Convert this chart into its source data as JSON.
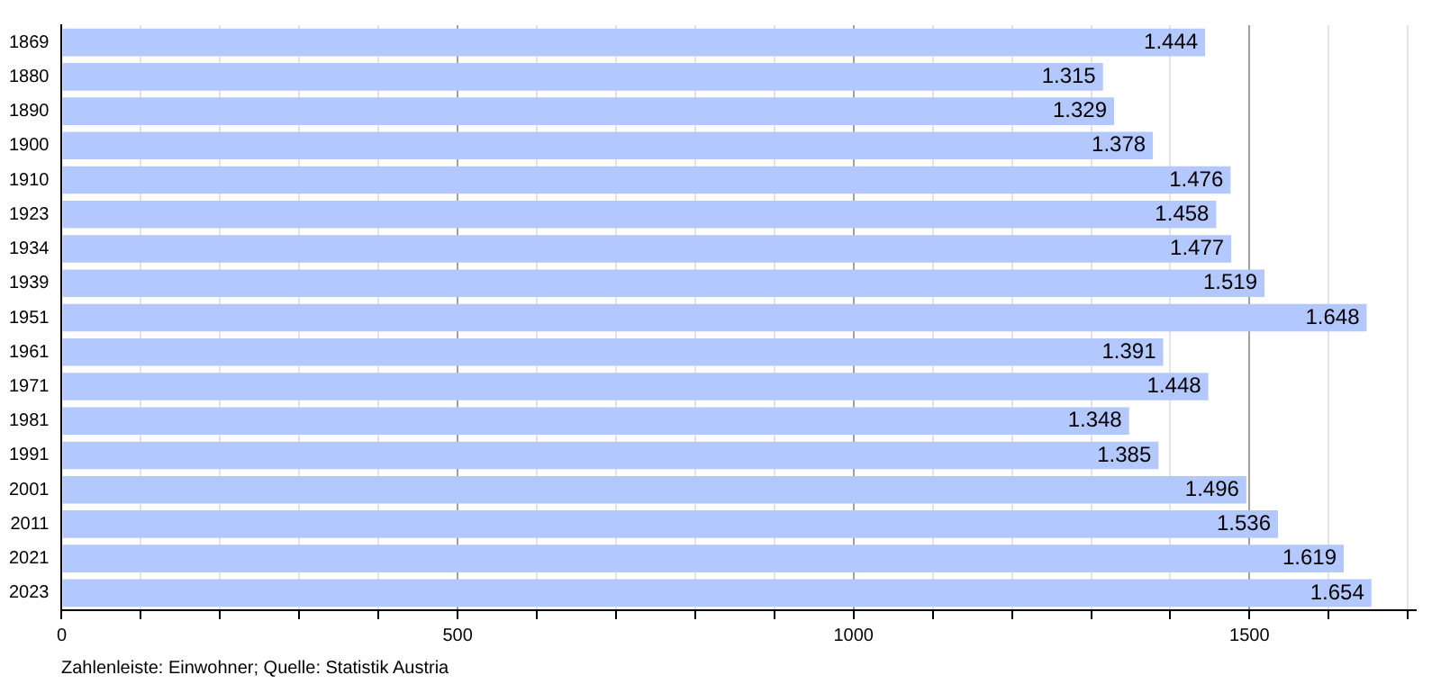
{
  "chart_data": {
    "type": "bar",
    "orientation": "horizontal",
    "categories": [
      "1869",
      "1880",
      "1890",
      "1900",
      "1910",
      "1923",
      "1934",
      "1939",
      "1951",
      "1961",
      "1971",
      "1981",
      "1991",
      "2001",
      "2011",
      "2021",
      "2023"
    ],
    "values": [
      1444,
      1315,
      1329,
      1378,
      1476,
      1458,
      1477,
      1519,
      1648,
      1391,
      1448,
      1348,
      1385,
      1496,
      1536,
      1619,
      1654
    ],
    "value_labels": [
      "1.444",
      "1.315",
      "1.329",
      "1.378",
      "1.476",
      "1.458",
      "1.477",
      "1.519",
      "1.648",
      "1.391",
      "1.448",
      "1.348",
      "1.385",
      "1.496",
      "1.536",
      "1.619",
      "1.654"
    ],
    "color": "#b3c8ff",
    "xlim": [
      0,
      1710
    ],
    "xticks": [
      0,
      {
        "value": 100,
        "label": null
      },
      {
        "value": 200,
        "label": null
      },
      {
        "value": 300,
        "label": null
      },
      {
        "value": 400,
        "label": null
      },
      500,
      {
        "value": 600,
        "label": null
      },
      {
        "value": 700,
        "label": null
      },
      {
        "value": 800,
        "label": null
      },
      {
        "value": 900,
        "label": null
      },
      1000,
      {
        "value": 1100,
        "label": null
      },
      {
        "value": 1200,
        "label": null
      },
      {
        "value": 1300,
        "label": null
      },
      {
        "value": 1400,
        "label": null
      },
      1500,
      {
        "value": 1600,
        "label": null
      },
      {
        "value": 1700,
        "label": null
      }
    ],
    "grid": "x",
    "legend": false,
    "annotations": [
      "Zahlenleiste: Einwohner; Quelle: Statistik Austria"
    ]
  }
}
